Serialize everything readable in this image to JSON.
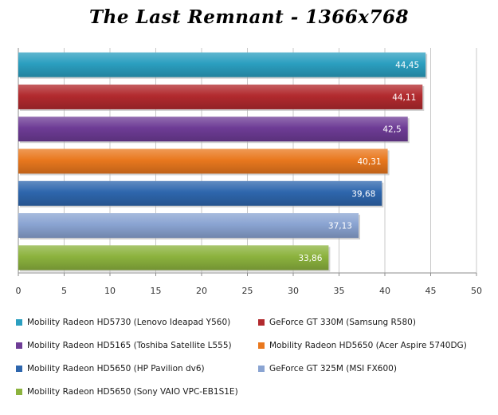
{
  "chart_data": {
    "type": "bar",
    "orientation": "horizontal",
    "title": "The Last Remnant - 1366x768",
    "xlim": [
      0,
      50
    ],
    "xticks": [
      "0",
      "5",
      "10",
      "15",
      "20",
      "25",
      "30",
      "35",
      "40",
      "45",
      "50"
    ],
    "grid": true,
    "legend_position": "bottom",
    "series": [
      {
        "name": "Mobility Radeon HD5730 (Lenovo Ideapad Y560)",
        "value": 44.45,
        "label": "44,45",
        "color": "#2b9fc0"
      },
      {
        "name": "GeForce GT 330M (Samsung R580)",
        "value": 44.11,
        "label": "44,11",
        "color": "#b22a2e"
      },
      {
        "name": "Mobility Radeon HD5165 (Toshiba Satellite L555)",
        "value": 42.5,
        "label": "42,5",
        "color": "#6e3c96"
      },
      {
        "name": "Mobility Radeon HD5650 (Acer Aspire 5740DG)",
        "value": 40.31,
        "label": "40,31",
        "color": "#e9781e"
      },
      {
        "name": "Mobility Radeon HD5650 (HP Pavilion dv6)",
        "value": 39.68,
        "label": "39,68",
        "color": "#2e66ad"
      },
      {
        "name": "GeForce GT 325M (MSI FX600)",
        "value": 37.13,
        "label": "37,13",
        "color": "#8aa4d2"
      },
      {
        "name": "Mobility Radeon HD5650 (Sony VAIO VPC-EB1S1E)",
        "value": 33.86,
        "label": "33,86",
        "color": "#8cb33e"
      }
    ]
  }
}
